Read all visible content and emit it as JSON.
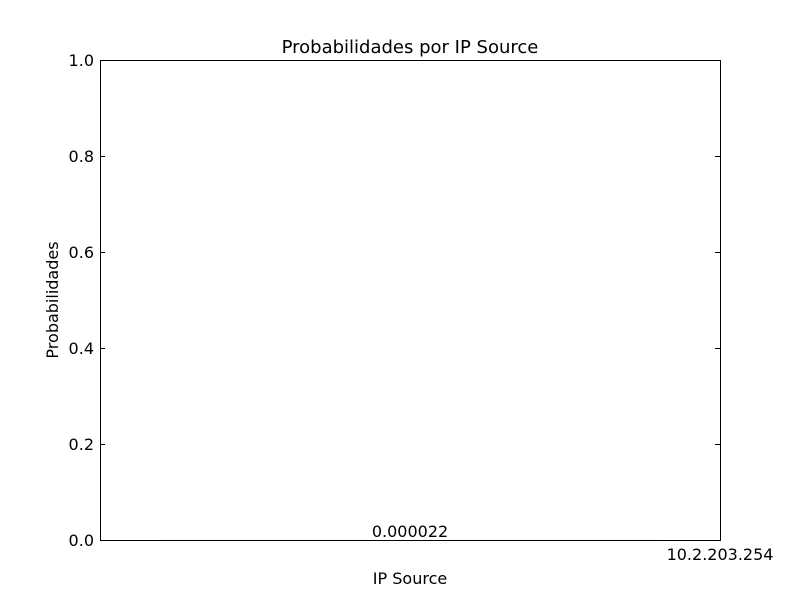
{
  "chart_data": {
    "type": "bar",
    "title": "Probabilidades por IP Source",
    "xlabel": "IP Source",
    "ylabel": "Probabilidades",
    "categories": [
      "10.2.203.254"
    ],
    "values": [
      2.2e-05
    ],
    "value_labels": [
      "0.000022"
    ],
    "ylim": [
      0.0,
      1.0
    ],
    "yticks": [
      "0.0",
      "0.2",
      "0.4",
      "0.6",
      "0.8",
      "1.0"
    ],
    "grid": false,
    "legend": "none",
    "colors": {
      "axis": "#000000",
      "bar": "#0000ff",
      "background": "#ffffff"
    }
  }
}
